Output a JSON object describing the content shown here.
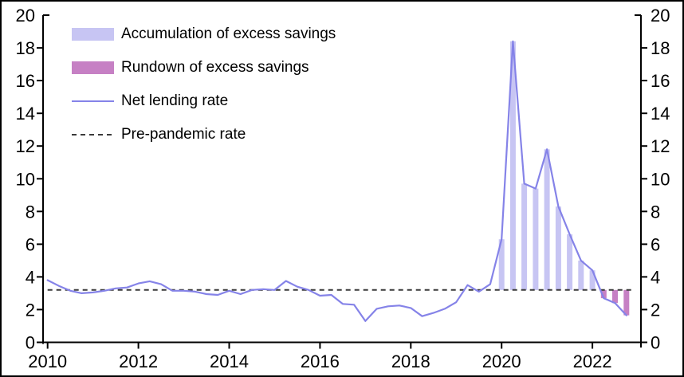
{
  "legend": {
    "items": [
      {
        "label": "Accumulation of excess savings",
        "swatch": "bar-accumulation"
      },
      {
        "label": "Rundown of excess savings",
        "swatch": "bar-rundown"
      },
      {
        "label": "Net lending rate",
        "swatch": "line"
      },
      {
        "label": "Pre-pandemic rate",
        "swatch": "dashed-line"
      }
    ]
  },
  "colors": {
    "accumulation": "#c7c5f3",
    "rundown": "#c680c4",
    "line": "#8583e8",
    "pre_pandemic": "#3a3a3a",
    "axis": "#000000"
  },
  "chart_data": {
    "type": "line+bar",
    "title": "",
    "xlabel": "",
    "ylabel": "",
    "ylim": [
      0,
      20
    ],
    "y_tick_step": 2,
    "y_tick_labels": [
      "0",
      "2",
      "4",
      "6",
      "8",
      "10",
      "12",
      "14",
      "16",
      "18",
      "20"
    ],
    "x_ticks": [
      2010,
      2012,
      2014,
      2016,
      2018,
      2020,
      2022
    ],
    "x_tick_labels": [
      "2010",
      "2012",
      "2014",
      "2016",
      "2018",
      "2020",
      "2022"
    ],
    "xlim": [
      2009.9,
      2023.07
    ],
    "x_step_years": 0.25,
    "grid": false,
    "legend_position": "top-left",
    "dual_y_axis": true,
    "series": [
      {
        "name": "Net lending rate",
        "style": "solid-line",
        "x_start": 2010.0,
        "values": [
          3.8,
          3.45,
          3.15,
          3.0,
          3.05,
          3.15,
          3.3,
          3.35,
          3.6,
          3.73,
          3.55,
          3.15,
          3.15,
          3.1,
          2.95,
          2.9,
          3.15,
          2.95,
          3.2,
          3.25,
          3.2,
          3.75,
          3.4,
          3.2,
          2.85,
          2.9,
          2.35,
          2.3,
          1.3,
          2.05,
          2.2,
          2.25,
          2.1,
          1.6,
          1.8,
          2.05,
          2.45,
          3.5,
          3.1,
          3.55,
          6.3,
          18.4,
          9.7,
          9.4,
          11.8,
          8.3,
          6.6,
          5.0,
          4.4,
          2.7,
          2.4,
          1.65
        ]
      },
      {
        "name": "Pre-pandemic rate",
        "style": "dashed-line",
        "value": 3.2,
        "x_range": [
          2010.0,
          2022.93
        ]
      }
    ],
    "excess_savings_bars": {
      "baseline": 3.2,
      "start_quarter": 2020.0,
      "quarter_step": 0.25,
      "values": [
        6.3,
        18.4,
        9.7,
        9.4,
        11.8,
        8.3,
        6.6,
        5.0,
        4.4,
        2.7,
        2.4,
        1.65
      ],
      "kinds": [
        "accumulation",
        "accumulation",
        "accumulation",
        "accumulation",
        "accumulation",
        "accumulation",
        "accumulation",
        "accumulation",
        "accumulation",
        "rundown",
        "rundown",
        "rundown"
      ]
    }
  }
}
